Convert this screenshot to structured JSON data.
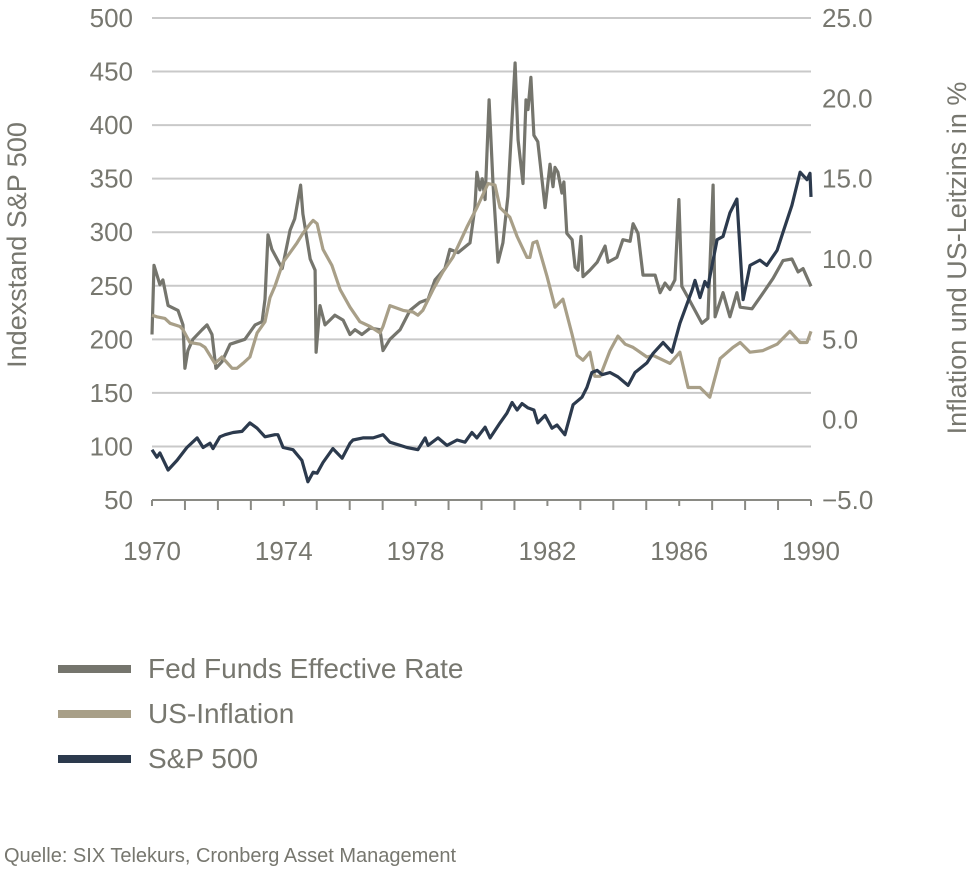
{
  "chart_data": {
    "type": "line",
    "title": "",
    "xlabel": "",
    "ylabel": "Indexstand S&P 500",
    "ylabel_right": "Inflation und US-Leitzins in %",
    "xlim": [
      1970,
      1990
    ],
    "ylim": [
      50,
      500
    ],
    "ylim_right": [
      -5.0,
      25.0
    ],
    "x_ticks": [
      "1970",
      "1974",
      "1978",
      "1982",
      "1986",
      "1990"
    ],
    "y_ticks": [
      "500",
      "450",
      "400",
      "350",
      "300",
      "250",
      "200",
      "150",
      "100",
      "50"
    ],
    "y_ticks_right": [
      "25.0",
      "20.0",
      "15.0",
      "10.0",
      "5.0",
      "0.0",
      "−5.0"
    ],
    "grid": true,
    "legend_position": "bottom-left",
    "series": [
      {
        "name": "Fed Funds Effective Rate",
        "axis": "right",
        "color": "#75756d",
        "points": [
          [
            1970.0,
            5.3
          ],
          [
            1970.06,
            9.6
          ],
          [
            1970.24,
            8.4
          ],
          [
            1970.33,
            8.7
          ],
          [
            1970.49,
            7.1
          ],
          [
            1970.79,
            6.8
          ],
          [
            1970.94,
            5.9
          ],
          [
            1971.0,
            3.2
          ],
          [
            1971.09,
            4.3
          ],
          [
            1971.24,
            5.0
          ],
          [
            1971.52,
            5.6
          ],
          [
            1971.67,
            5.9
          ],
          [
            1971.82,
            5.3
          ],
          [
            1971.94,
            3.2
          ],
          [
            1972.12,
            3.6
          ],
          [
            1972.37,
            4.7
          ],
          [
            1972.82,
            5.0
          ],
          [
            1973.13,
            5.9
          ],
          [
            1973.34,
            6.1
          ],
          [
            1973.43,
            7.5
          ],
          [
            1973.52,
            11.5
          ],
          [
            1973.64,
            10.6
          ],
          [
            1973.95,
            9.4
          ],
          [
            1974.19,
            11.8
          ],
          [
            1974.33,
            12.5
          ],
          [
            1974.51,
            14.6
          ],
          [
            1974.58,
            12.8
          ],
          [
            1974.8,
            10.0
          ],
          [
            1974.95,
            9.3
          ],
          [
            1974.98,
            4.2
          ],
          [
            1975.1,
            7.1
          ],
          [
            1975.25,
            5.9
          ],
          [
            1975.4,
            6.2
          ],
          [
            1975.55,
            6.5
          ],
          [
            1975.8,
            6.2
          ],
          [
            1976.01,
            5.3
          ],
          [
            1976.16,
            5.6
          ],
          [
            1976.37,
            5.3
          ],
          [
            1976.62,
            5.7
          ],
          [
            1976.92,
            5.6
          ],
          [
            1977.01,
            4.3
          ],
          [
            1977.22,
            5.0
          ],
          [
            1977.53,
            5.6
          ],
          [
            1977.83,
            6.8
          ],
          [
            1978.13,
            7.3
          ],
          [
            1978.38,
            7.5
          ],
          [
            1978.59,
            8.7
          ],
          [
            1978.89,
            9.4
          ],
          [
            1979.04,
            10.6
          ],
          [
            1979.29,
            10.4
          ],
          [
            1979.65,
            11.0
          ],
          [
            1979.8,
            13.2
          ],
          [
            1979.86,
            15.4
          ],
          [
            1979.95,
            14.3
          ],
          [
            1980.02,
            15.0
          ],
          [
            1980.11,
            13.7
          ],
          [
            1980.23,
            19.9
          ],
          [
            1980.35,
            14.7
          ],
          [
            1980.5,
            9.8
          ],
          [
            1980.65,
            11.0
          ],
          [
            1980.8,
            13.9
          ],
          [
            1981.02,
            22.2
          ],
          [
            1981.11,
            17.4
          ],
          [
            1981.26,
            14.7
          ],
          [
            1981.35,
            19.9
          ],
          [
            1981.41,
            19.3
          ],
          [
            1981.5,
            21.3
          ],
          [
            1981.59,
            17.7
          ],
          [
            1981.71,
            17.3
          ],
          [
            1981.93,
            13.2
          ],
          [
            1982.08,
            15.9
          ],
          [
            1982.17,
            14.5
          ],
          [
            1982.23,
            15.7
          ],
          [
            1982.32,
            15.4
          ],
          [
            1982.44,
            14.1
          ],
          [
            1982.5,
            14.8
          ],
          [
            1982.59,
            11.6
          ],
          [
            1982.75,
            11.2
          ],
          [
            1982.84,
            9.5
          ],
          [
            1982.93,
            9.3
          ],
          [
            1983.02,
            11.4
          ],
          [
            1983.08,
            8.9
          ],
          [
            1983.29,
            9.3
          ],
          [
            1983.51,
            9.8
          ],
          [
            1983.75,
            10.8
          ],
          [
            1983.84,
            9.8
          ],
          [
            1984.11,
            10.1
          ],
          [
            1984.29,
            11.2
          ],
          [
            1984.51,
            11.1
          ],
          [
            1984.6,
            12.2
          ],
          [
            1984.75,
            11.6
          ],
          [
            1984.9,
            9.0
          ],
          [
            1985.27,
            9.0
          ],
          [
            1985.42,
            7.9
          ],
          [
            1985.57,
            8.5
          ],
          [
            1985.72,
            8.1
          ],
          [
            1985.87,
            8.7
          ],
          [
            1985.99,
            13.7
          ],
          [
            1986.08,
            8.3
          ],
          [
            1986.27,
            7.6
          ],
          [
            1986.69,
            6.0
          ],
          [
            1986.87,
            6.3
          ],
          [
            1987.03,
            14.6
          ],
          [
            1987.09,
            6.4
          ],
          [
            1987.33,
            7.9
          ],
          [
            1987.54,
            6.4
          ],
          [
            1987.75,
            7.9
          ],
          [
            1987.85,
            7.0
          ],
          [
            1988.21,
            6.9
          ],
          [
            1988.45,
            7.6
          ],
          [
            1988.85,
            8.8
          ],
          [
            1989.15,
            9.9
          ],
          [
            1989.42,
            10.0
          ],
          [
            1989.61,
            9.2
          ],
          [
            1989.76,
            9.4
          ],
          [
            1990.0,
            8.3
          ]
        ]
      },
      {
        "name": "US-Inflation",
        "axis": "right",
        "color": "#a89f88",
        "points": [
          [
            1970.0,
            6.5
          ],
          [
            1970.15,
            6.4
          ],
          [
            1970.39,
            6.3
          ],
          [
            1970.55,
            6.0
          ],
          [
            1970.85,
            5.8
          ],
          [
            1970.94,
            5.6
          ],
          [
            1971.15,
            4.8
          ],
          [
            1971.46,
            4.7
          ],
          [
            1971.61,
            4.5
          ],
          [
            1971.91,
            3.5
          ],
          [
            1972.12,
            3.9
          ],
          [
            1972.43,
            3.2
          ],
          [
            1972.58,
            3.2
          ],
          [
            1972.76,
            3.5
          ],
          [
            1972.97,
            3.9
          ],
          [
            1973.19,
            5.4
          ],
          [
            1973.43,
            6.1
          ],
          [
            1973.58,
            7.6
          ],
          [
            1973.73,
            8.3
          ],
          [
            1973.98,
            9.8
          ],
          [
            1974.19,
            10.4
          ],
          [
            1974.4,
            11.0
          ],
          [
            1974.58,
            11.6
          ],
          [
            1974.8,
            12.2
          ],
          [
            1974.89,
            12.4
          ],
          [
            1975.01,
            12.2
          ],
          [
            1975.19,
            10.6
          ],
          [
            1975.46,
            9.6
          ],
          [
            1975.71,
            8.1
          ],
          [
            1976.01,
            7.0
          ],
          [
            1976.31,
            6.1
          ],
          [
            1976.62,
            5.8
          ],
          [
            1976.92,
            5.4
          ],
          [
            1977.01,
            5.8
          ],
          [
            1977.22,
            7.1
          ],
          [
            1977.62,
            6.8
          ],
          [
            1977.92,
            6.7
          ],
          [
            1978.07,
            6.5
          ],
          [
            1978.22,
            6.8
          ],
          [
            1978.53,
            8.1
          ],
          [
            1978.83,
            9.2
          ],
          [
            1979.13,
            10.1
          ],
          [
            1979.56,
            12.0
          ],
          [
            1979.86,
            13.2
          ],
          [
            1980.2,
            14.7
          ],
          [
            1980.41,
            14.6
          ],
          [
            1980.56,
            13.2
          ],
          [
            1980.86,
            12.6
          ],
          [
            1981.08,
            11.4
          ],
          [
            1981.38,
            10.1
          ],
          [
            1981.47,
            10.1
          ],
          [
            1981.56,
            11.0
          ],
          [
            1981.68,
            11.1
          ],
          [
            1981.99,
            8.9
          ],
          [
            1982.23,
            7.0
          ],
          [
            1982.47,
            7.5
          ],
          [
            1982.75,
            5.3
          ],
          [
            1982.9,
            4.0
          ],
          [
            1983.08,
            3.7
          ],
          [
            1983.29,
            4.2
          ],
          [
            1983.44,
            2.7
          ],
          [
            1983.6,
            2.7
          ],
          [
            1983.9,
            4.3
          ],
          [
            1984.14,
            5.2
          ],
          [
            1984.36,
            4.7
          ],
          [
            1984.6,
            4.5
          ],
          [
            1985.02,
            3.9
          ],
          [
            1985.21,
            4.0
          ],
          [
            1985.72,
            3.5
          ],
          [
            1986.02,
            4.2
          ],
          [
            1986.27,
            2.0
          ],
          [
            1986.63,
            2.0
          ],
          [
            1986.93,
            1.4
          ],
          [
            1987.24,
            3.8
          ],
          [
            1987.63,
            4.5
          ],
          [
            1987.85,
            4.8
          ],
          [
            1988.15,
            4.2
          ],
          [
            1988.54,
            4.3
          ],
          [
            1988.97,
            4.7
          ],
          [
            1989.36,
            5.5
          ],
          [
            1989.67,
            4.8
          ],
          [
            1989.88,
            4.8
          ],
          [
            1990.0,
            5.5
          ]
        ]
      },
      {
        "name": "S&P 500",
        "axis": "left",
        "color": "#2c3a4d",
        "points": [
          [
            1970.0,
            97
          ],
          [
            1970.15,
            90
          ],
          [
            1970.24,
            94
          ],
          [
            1970.49,
            78
          ],
          [
            1970.76,
            87
          ],
          [
            1971.06,
            99
          ],
          [
            1971.37,
            108
          ],
          [
            1971.55,
            99
          ],
          [
            1971.76,
            103
          ],
          [
            1971.85,
            98
          ],
          [
            1972.06,
            109
          ],
          [
            1972.22,
            111
          ],
          [
            1972.46,
            113
          ],
          [
            1972.73,
            114
          ],
          [
            1972.97,
            122
          ],
          [
            1973.19,
            117
          ],
          [
            1973.43,
            109
          ],
          [
            1973.73,
            111
          ],
          [
            1973.82,
            111
          ],
          [
            1973.98,
            99
          ],
          [
            1974.28,
            97
          ],
          [
            1974.55,
            87
          ],
          [
            1974.73,
            67
          ],
          [
            1974.89,
            76
          ],
          [
            1975.01,
            75
          ],
          [
            1975.19,
            85
          ],
          [
            1975.49,
            98
          ],
          [
            1975.77,
            89
          ],
          [
            1976.01,
            103
          ],
          [
            1976.1,
            106
          ],
          [
            1976.4,
            108
          ],
          [
            1976.71,
            108
          ],
          [
            1977.01,
            111
          ],
          [
            1977.22,
            104
          ],
          [
            1977.74,
            99
          ],
          [
            1978.07,
            97
          ],
          [
            1978.29,
            108
          ],
          [
            1978.38,
            101
          ],
          [
            1978.68,
            108
          ],
          [
            1978.95,
            101
          ],
          [
            1979.26,
            106
          ],
          [
            1979.5,
            104
          ],
          [
            1979.71,
            113
          ],
          [
            1979.86,
            108
          ],
          [
            1980.11,
            118
          ],
          [
            1980.26,
            108
          ],
          [
            1980.56,
            122
          ],
          [
            1980.77,
            131
          ],
          [
            1980.93,
            141
          ],
          [
            1981.08,
            134
          ],
          [
            1981.23,
            140
          ],
          [
            1981.41,
            136
          ],
          [
            1981.59,
            134
          ],
          [
            1981.71,
            122
          ],
          [
            1981.93,
            129
          ],
          [
            1982.14,
            117
          ],
          [
            1982.29,
            120
          ],
          [
            1982.53,
            111
          ],
          [
            1982.78,
            139
          ],
          [
            1983.05,
            146
          ],
          [
            1983.2,
            155
          ],
          [
            1983.35,
            169
          ],
          [
            1983.51,
            171
          ],
          [
            1983.66,
            167
          ],
          [
            1983.9,
            169
          ],
          [
            1984.14,
            165
          ],
          [
            1984.45,
            157
          ],
          [
            1984.66,
            169
          ],
          [
            1985.02,
            178
          ],
          [
            1985.21,
            187
          ],
          [
            1985.51,
            197
          ],
          [
            1985.78,
            188
          ],
          [
            1986.02,
            215
          ],
          [
            1986.39,
            246
          ],
          [
            1986.48,
            255
          ],
          [
            1986.63,
            239
          ],
          [
            1986.78,
            254
          ],
          [
            1986.87,
            249
          ],
          [
            1987.15,
            293
          ],
          [
            1987.33,
            296
          ],
          [
            1987.54,
            318
          ],
          [
            1987.75,
            331
          ],
          [
            1987.94,
            237
          ],
          [
            1988.15,
            269
          ],
          [
            1988.45,
            274
          ],
          [
            1988.66,
            269
          ],
          [
            1988.97,
            283
          ],
          [
            1989.15,
            300
          ],
          [
            1989.42,
            325
          ],
          [
            1989.67,
            356
          ],
          [
            1989.88,
            349
          ],
          [
            1989.97,
            355
          ],
          [
            1990.0,
            333
          ]
        ]
      }
    ]
  },
  "source": "Quelle: SIX Telekurs, Cronberg Asset Management"
}
